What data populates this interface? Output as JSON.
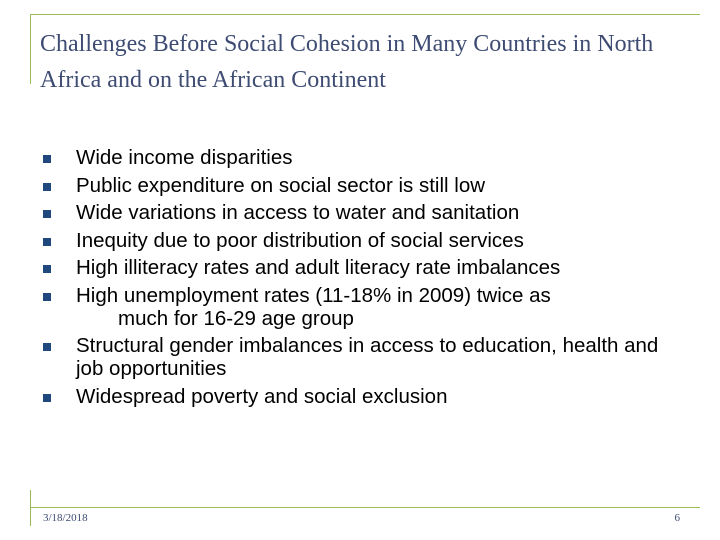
{
  "slide": {
    "title": "Challenges Before Social Cohesion in Many Countries in North Africa and on the African Continent",
    "bullets": [
      {
        "text": "Wide income disparities"
      },
      {
        "text": "Public expenditure on social sector is still low"
      },
      {
        "text": "Wide variations in access to water and sanitation"
      },
      {
        "text": "Inequity due to poor distribution of social services"
      },
      {
        "text": "High illiteracy rates and adult literacy rate imbalances"
      },
      {
        "text": "High unemployment rates (11-18% in 2009) twice as",
        "cont": "much for 16-29 age group"
      },
      {
        "text": "Structural gender imbalances in access to education, health and job opportunities"
      },
      {
        "text": "Widespread poverty and social exclusion"
      }
    ],
    "footer": {
      "date": "3/18/2018",
      "page": "6"
    },
    "colors": {
      "title": "#3e4c73",
      "accent_line": "#9bbb59",
      "bullet": "#1f497d"
    }
  }
}
